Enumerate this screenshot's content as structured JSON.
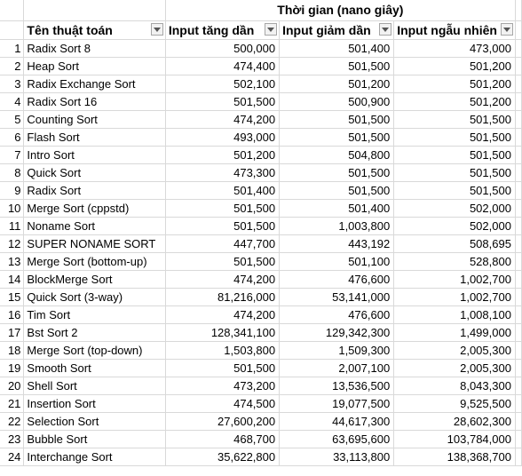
{
  "title": "Thời gian (nano giây)",
  "headers": {
    "name": "Tên thuật toán",
    "asc": "Input tăng dần",
    "desc": "Input giảm dần",
    "rand": "Input ngẫu nhiên"
  },
  "rows": [
    {
      "i": "1",
      "name": "Radix Sort 8",
      "asc": "500,000",
      "desc": "501,400",
      "rand": "473,000"
    },
    {
      "i": "2",
      "name": "Heap Sort",
      "asc": "474,400",
      "desc": "501,500",
      "rand": "501,200"
    },
    {
      "i": "3",
      "name": "Radix Exchange Sort",
      "asc": "502,100",
      "desc": "501,200",
      "rand": "501,200"
    },
    {
      "i": "4",
      "name": "Radix Sort 16",
      "asc": "501,500",
      "desc": "500,900",
      "rand": "501,200"
    },
    {
      "i": "5",
      "name": "Counting Sort",
      "asc": "474,200",
      "desc": "501,500",
      "rand": "501,500"
    },
    {
      "i": "6",
      "name": "Flash Sort",
      "asc": "493,000",
      "desc": "501,500",
      "rand": "501,500"
    },
    {
      "i": "7",
      "name": "Intro Sort",
      "asc": "501,200",
      "desc": "504,800",
      "rand": "501,500"
    },
    {
      "i": "8",
      "name": "Quick Sort",
      "asc": "473,300",
      "desc": "501,500",
      "rand": "501,500"
    },
    {
      "i": "9",
      "name": "Radix Sort",
      "asc": "501,400",
      "desc": "501,500",
      "rand": "501,500"
    },
    {
      "i": "10",
      "name": "Merge Sort (cppstd)",
      "asc": "501,500",
      "desc": "501,400",
      "rand": "502,000"
    },
    {
      "i": "11",
      "name": "Noname Sort",
      "asc": "501,500",
      "desc": "1,003,800",
      "rand": "502,000"
    },
    {
      "i": "12",
      "name": "SUPER NONAME SORT",
      "asc": "447,700",
      "desc": "443,192",
      "rand": "508,695"
    },
    {
      "i": "13",
      "name": "Merge Sort (bottom-up)",
      "asc": "501,500",
      "desc": "501,100",
      "rand": "528,800"
    },
    {
      "i": "14",
      "name": "BlockMerge Sort",
      "asc": "474,200",
      "desc": "476,600",
      "rand": "1,002,700"
    },
    {
      "i": "15",
      "name": "Quick Sort (3-way)",
      "asc": "81,216,000",
      "desc": "53,141,000",
      "rand": "1,002,700"
    },
    {
      "i": "16",
      "name": "Tim Sort",
      "asc": "474,200",
      "desc": "476,600",
      "rand": "1,008,100"
    },
    {
      "i": "17",
      "name": "Bst Sort 2",
      "asc": "128,341,100",
      "desc": "129,342,300",
      "rand": "1,499,000"
    },
    {
      "i": "18",
      "name": "Merge Sort (top-down)",
      "asc": "1,503,800",
      "desc": "1,509,300",
      "rand": "2,005,300"
    },
    {
      "i": "19",
      "name": "Smooth Sort",
      "asc": "501,500",
      "desc": "2,007,100",
      "rand": "2,005,300"
    },
    {
      "i": "20",
      "name": "Shell Sort",
      "asc": "473,200",
      "desc": "13,536,500",
      "rand": "8,043,300"
    },
    {
      "i": "21",
      "name": "Insertion Sort",
      "asc": "474,500",
      "desc": "19,077,500",
      "rand": "9,525,500"
    },
    {
      "i": "22",
      "name": "Selection Sort",
      "asc": "27,600,200",
      "desc": "44,617,300",
      "rand": "28,602,300"
    },
    {
      "i": "23",
      "name": "Bubble Sort",
      "asc": "468,700",
      "desc": "63,695,600",
      "rand": "103,784,000"
    },
    {
      "i": "24",
      "name": "Interchange Sort",
      "asc": "35,622,800",
      "desc": "33,113,800",
      "rand": "138,368,700"
    }
  ]
}
